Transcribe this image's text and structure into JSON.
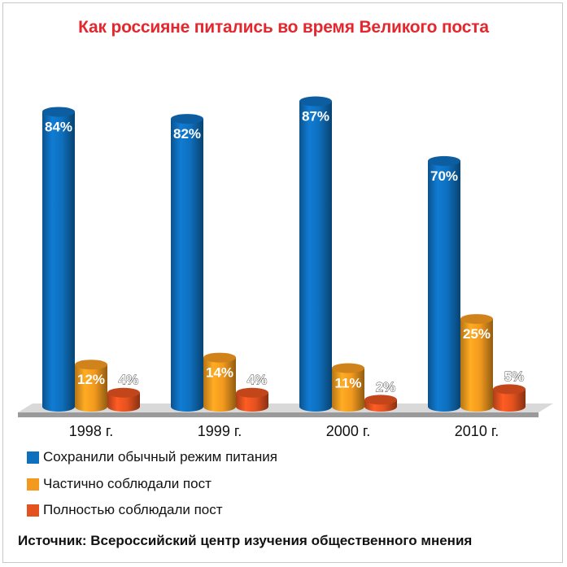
{
  "chart_data": {
    "type": "bar",
    "title": "Как россияне питались во время Великого поста",
    "categories": [
      "1998 г.",
      "1999 г.",
      "2000 г.",
      "2010 г."
    ],
    "series": [
      {
        "name": "Сохранили обычный режим питания",
        "values": [
          84,
          82,
          87,
          70
        ],
        "labels": [
          "84%",
          "82%",
          "87%",
          "70%"
        ],
        "color": "#0e6fbd"
      },
      {
        "name": "Частично соблюдали пост",
        "values": [
          12,
          14,
          11,
          25
        ],
        "labels": [
          "12%",
          "14%",
          "11%",
          "25%"
        ],
        "color": "#f39a1e"
      },
      {
        "name": "Полностью соблюдали пост",
        "values": [
          4,
          4,
          2,
          5
        ],
        "labels": [
          "4%",
          "4%",
          "2%",
          "5%"
        ],
        "color": "#e4521f"
      }
    ],
    "ylim": [
      0,
      100
    ],
    "grid": false,
    "legend": "bottom-left"
  },
  "source": "Источник: Всероссийский центр изучения общественного мнения"
}
